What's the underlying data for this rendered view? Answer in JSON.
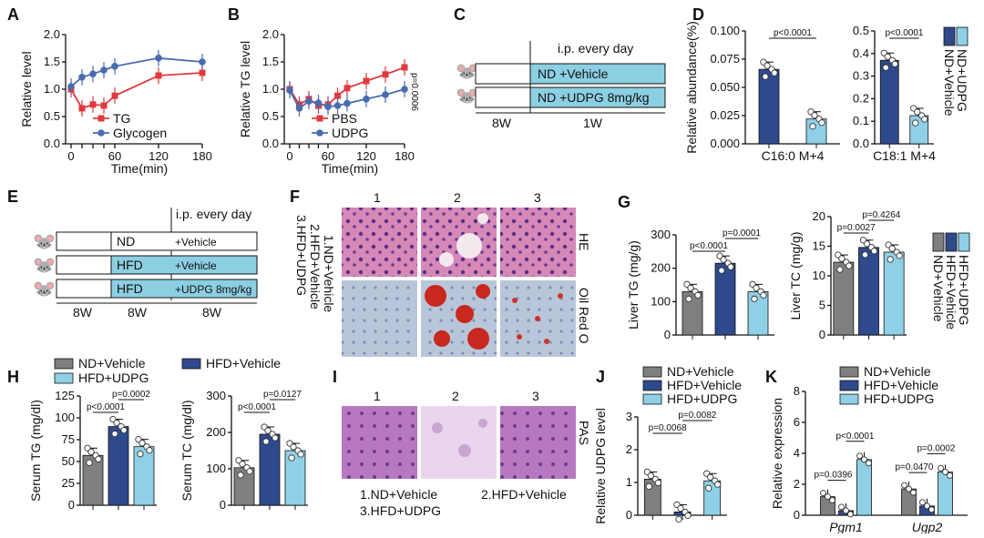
{
  "colors": {
    "red": "#e03a3e",
    "blue": "#4a6bb0",
    "gray": "#7f7f7f",
    "navy": "#2e4a8c",
    "light": "#8fd0e6",
    "box": "#8ccfe2"
  },
  "panels": {
    "A": "A",
    "B": "B",
    "C": "C",
    "D": "D",
    "E": "E",
    "F": "F",
    "G": "G",
    "H": "H",
    "I": "I",
    "J": "J",
    "K": "K"
  },
  "chart_data": [
    {
      "id": "A",
      "type": "line",
      "xlabel": "Time(min)",
      "ylabel": "Relative level",
      "xticks": [
        "0",
        "60",
        "120",
        "180"
      ],
      "yticks": [
        "0.0",
        "0.5",
        "1.0",
        "1.5",
        "2.0"
      ],
      "xlim": [
        0,
        180
      ],
      "ylim": [
        0,
        2.0
      ],
      "series": [
        {
          "name": "TG",
          "color": "red",
          "x": [
            0,
            15,
            30,
            45,
            60,
            120,
            180
          ],
          "y": [
            1.0,
            0.65,
            0.72,
            0.7,
            0.88,
            1.25,
            1.3
          ]
        },
        {
          "name": "Glycogen",
          "color": "blue",
          "x": [
            0,
            15,
            30,
            45,
            60,
            120,
            180
          ],
          "y": [
            1.05,
            1.22,
            1.28,
            1.35,
            1.42,
            1.57,
            1.5
          ]
        }
      ]
    },
    {
      "id": "B",
      "type": "line",
      "xlabel": "Time(min)",
      "ylabel": "Relative TG level",
      "xticks": [
        "0",
        "60",
        "120",
        "180"
      ],
      "yticks": [
        "0.0",
        "0.5",
        "1.0",
        "1.5",
        "2.0"
      ],
      "xlim": [
        0,
        180
      ],
      "ylim": [
        0,
        2.0
      ],
      "annotation": "p=0.0006",
      "series": [
        {
          "name": "PBS",
          "color": "red",
          "x": [
            0,
            15,
            30,
            45,
            60,
            75,
            90,
            120,
            150,
            180
          ],
          "y": [
            1.0,
            0.72,
            0.82,
            0.7,
            0.72,
            0.88,
            1.02,
            1.15,
            1.27,
            1.4
          ]
        },
        {
          "name": "UDPG",
          "color": "blue",
          "x": [
            0,
            15,
            30,
            45,
            60,
            75,
            90,
            120,
            150,
            180
          ],
          "y": [
            0.98,
            0.65,
            0.78,
            0.75,
            0.68,
            0.7,
            0.74,
            0.82,
            0.9,
            1.0
          ]
        }
      ]
    },
    {
      "id": "D1",
      "type": "bar",
      "xlabel": "C16:0 M+4",
      "ylabel": "Relative abundance(%)",
      "categories": [
        "ND+Vehicle",
        "ND+UDPG"
      ],
      "values": [
        0.066,
        0.022
      ],
      "yticks": [
        "0.000",
        "0.025",
        "0.050",
        "0.075",
        "0.100"
      ],
      "ylim": [
        0,
        0.1
      ],
      "pvalue": "p<0.0001"
    },
    {
      "id": "D2",
      "type": "bar",
      "xlabel": "C18:1 M+4",
      "ylabel": "",
      "categories": [
        "ND+Vehicle",
        "ND+UDPG"
      ],
      "values": [
        0.37,
        0.125
      ],
      "yticks": [
        "0.0",
        "0.1",
        "0.2",
        "0.3",
        "0.4",
        "0.5"
      ],
      "ylim": [
        0,
        0.5
      ],
      "pvalue": "p<0.0001"
    },
    {
      "id": "G1",
      "type": "bar",
      "ylabel": "Liver TG (mg/g)",
      "categories": [
        "ND+Vehicle",
        "HFD+Vehicle",
        "HFD+UDPG"
      ],
      "values": [
        130,
        215,
        130
      ],
      "yticks": [
        "0",
        "100",
        "200",
        "300"
      ],
      "ylim": [
        0,
        300
      ],
      "pvalues": [
        "p<0.0001",
        "p=0.0001"
      ]
    },
    {
      "id": "G2",
      "type": "bar",
      "ylabel": "Liver TC (mg/g)",
      "categories": [
        "ND+Vehicle",
        "HFD+Vehicle",
        "HFD+UDPG"
      ],
      "values": [
        12.3,
        14.8,
        14.0
      ],
      "yticks": [
        "0",
        "5",
        "10",
        "15",
        "20"
      ],
      "ylim": [
        0,
        20
      ],
      "pvalues": [
        "p=0.0027",
        "p=0.4264"
      ]
    },
    {
      "id": "H1",
      "type": "bar",
      "ylabel": "Serum TG (mg/dl)",
      "categories": [
        "ND+Vehicle",
        "HFD+Vehicle",
        "HFD+UDPG"
      ],
      "values": [
        57,
        90,
        67
      ],
      "yticks": [
        "0",
        "25",
        "50",
        "75",
        "100",
        "125"
      ],
      "ylim": [
        0,
        125
      ],
      "pvalues": [
        "p<0.0001",
        "p=0.0002"
      ]
    },
    {
      "id": "H2",
      "type": "bar",
      "ylabel": "Serum TC (mg/dl)",
      "categories": [
        "ND+Vehicle",
        "HFD+Vehicle",
        "HFD+UDPG"
      ],
      "values": [
        103,
        195,
        150
      ],
      "yticks": [
        "0",
        "100",
        "200",
        "300"
      ],
      "ylim": [
        0,
        300
      ],
      "pvalues": [
        "p<0.0001",
        "p=0.0127"
      ]
    },
    {
      "id": "J",
      "type": "bar",
      "ylabel": "Relative UDPG level",
      "categories": [
        "ND+Vehicle",
        "HFD+Vehicle",
        "HFD+UDPG"
      ],
      "values": [
        1.1,
        0.1,
        1.05
      ],
      "yticks": [
        "0",
        "1",
        "2",
        "3"
      ],
      "ylim": [
        0,
        3
      ],
      "pvalues": [
        "p=0.0068",
        "p=0.0082"
      ]
    },
    {
      "id": "K",
      "type": "bar",
      "ylabel": "Relative expression",
      "groups": [
        "Pgm1",
        "Ugp2"
      ],
      "series": [
        {
          "name": "ND+Vehicle",
          "color": "gray",
          "values": [
            1.2,
            1.7
          ]
        },
        {
          "name": "HFD+Vehicle",
          "color": "navy",
          "values": [
            0.3,
            0.6
          ]
        },
        {
          "name": "HFD+UDPG",
          "color": "light",
          "values": [
            3.6,
            2.8
          ]
        }
      ],
      "yticks": [
        "0",
        "2",
        "4",
        "6",
        "8"
      ],
      "ylim": [
        0,
        8
      ],
      "pvalues": [
        [
          "p=0.0396",
          "p<0.0001"
        ],
        [
          "p=0.0470",
          "p=0.0002"
        ]
      ]
    }
  ],
  "legend3": [
    "ND+Vehicle",
    "HFD+Vehicle",
    "HFD+UDPG"
  ],
  "legendD": [
    "ND+Vehicle",
    "ND+UDPG"
  ],
  "C": {
    "ipday": "i.p. every day",
    "row1": "ND  +Vehicle",
    "row2": "ND  +UDPG 8mg/kg",
    "w1": "8W",
    "w2": "1W"
  },
  "E": {
    "ipday": "i.p. every day",
    "r1a": "ND",
    "r1b": "+Vehicle",
    "r2a": "HFD",
    "r2b": "+Vehicle",
    "r3a": "HFD",
    "r3b": "+UDPG 8mg/kg",
    "w": [
      "8W",
      "8W",
      "8W"
    ]
  },
  "F": {
    "cols": [
      "1",
      "2",
      "3"
    ],
    "rows": [
      "HE",
      "Oil Red O"
    ],
    "legend": [
      "1.ND+Vehicle",
      "2.HFD+Vehicle",
      "3.HFD+UDPG"
    ]
  },
  "I": {
    "cols": [
      "1",
      "2",
      "3"
    ],
    "row": "PAS",
    "legend1": "1.ND+Vehicle",
    "legend2": "2.HFD+Vehicle",
    "legend3": "3.HFD+UDPG"
  }
}
